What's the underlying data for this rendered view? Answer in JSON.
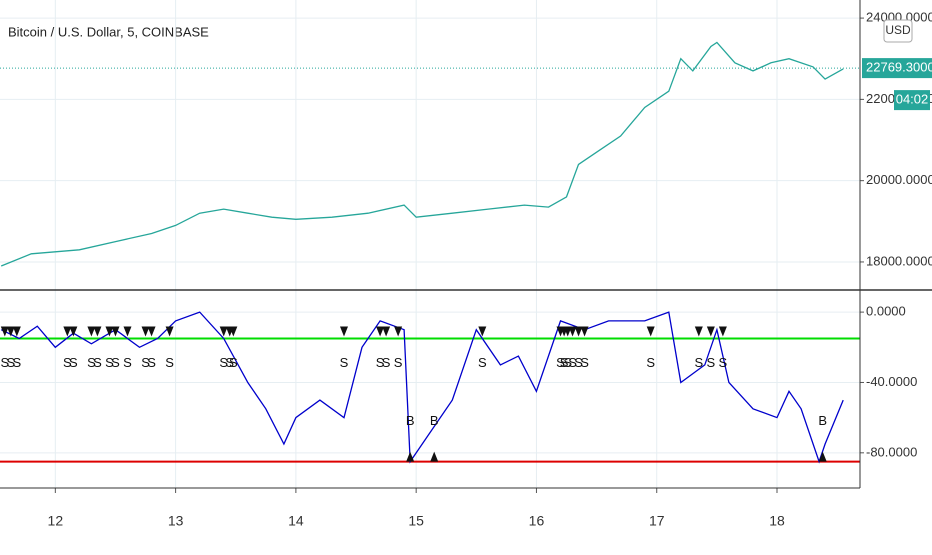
{
  "chart_data": [
    {
      "type": "line",
      "title": "Bitcoin / U.S. Dollar, 5, COINBASE",
      "x": [
        11.55,
        11.8,
        12.0,
        12.2,
        12.5,
        12.8,
        13.0,
        13.2,
        13.4,
        13.6,
        13.8,
        14.0,
        14.3,
        14.6,
        14.9,
        15.0,
        15.3,
        15.6,
        15.9,
        16.1,
        16.25,
        16.35,
        16.5,
        16.7,
        16.9,
        17.1,
        17.2,
        17.3,
        17.45,
        17.5,
        17.65,
        17.8,
        17.95,
        18.1,
        18.3,
        18.4,
        18.55
      ],
      "values": [
        17900,
        18200,
        18250,
        18300,
        18500,
        18700,
        18900,
        19200,
        19300,
        19200,
        19100,
        19050,
        19100,
        19200,
        19400,
        19100,
        19200,
        19300,
        19400,
        19350,
        19600,
        20400,
        20700,
        21100,
        21800,
        22200,
        23000,
        22700,
        23300,
        23400,
        22900,
        22700,
        22900,
        23000,
        22800,
        22500,
        22750
      ],
      "color": "#26a69a",
      "xlim": [
        11.54,
        18.69
      ],
      "ylim": [
        17310,
        24445
      ],
      "yticks": [
        {
          "value": 18000,
          "label": "18000.0000"
        },
        {
          "value": 20000,
          "label": "20000.0000"
        },
        {
          "value": 22000,
          "label": "22000.0000"
        },
        {
          "value": 24000,
          "label": "24000.0000"
        }
      ],
      "current_price": {
        "value": 22769.3,
        "label": "22769.3000"
      },
      "countdown": "04:02",
      "currency": "USD"
    },
    {
      "type": "line",
      "x": [
        11.55,
        11.7,
        11.85,
        12.0,
        12.15,
        12.3,
        12.5,
        12.7,
        12.85,
        13.0,
        13.2,
        13.4,
        13.6,
        13.75,
        13.9,
        14.0,
        14.2,
        14.4,
        14.55,
        14.7,
        14.9,
        14.95,
        15.1,
        15.3,
        15.5,
        15.7,
        15.85,
        16.0,
        16.2,
        16.4,
        16.6,
        16.9,
        17.1,
        17.2,
        17.4,
        17.5,
        17.6,
        17.8,
        18.0,
        18.1,
        18.2,
        18.35,
        18.4,
        18.55
      ],
      "values": [
        -10,
        -15,
        -8,
        -20,
        -12,
        -18,
        -10,
        -20,
        -15,
        -5,
        0,
        -15,
        -40,
        -55,
        -75,
        -60,
        -50,
        -60,
        -20,
        -5,
        -10,
        -85,
        -70,
        -50,
        -10,
        -30,
        -25,
        -45,
        -5,
        -10,
        -5,
        -5,
        0,
        -40,
        -30,
        -10,
        -40,
        -55,
        -60,
        -45,
        -55,
        -85,
        -75,
        -50
      ],
      "color": "#0000cc",
      "xlim": [
        11.54,
        18.69
      ],
      "ylim": [
        -100,
        12
      ],
      "yticks": [
        {
          "value": -80,
          "label": "-80.0000"
        },
        {
          "value": -40,
          "label": "-40.0000"
        },
        {
          "value": 0,
          "label": "0.0000"
        }
      ],
      "xticks": [
        12,
        13,
        14,
        15,
        16,
        17,
        18
      ],
      "levels": [
        {
          "value": -15,
          "color": "#00dd00"
        },
        {
          "value": -85,
          "color": "#dd0000"
        }
      ],
      "sell_signals": {
        "label": "S",
        "x": [
          11.58,
          11.63,
          11.68,
          12.1,
          12.15,
          12.3,
          12.35,
          12.45,
          12.5,
          12.6,
          12.75,
          12.8,
          12.95,
          13.4,
          13.45,
          13.48,
          14.4,
          14.7,
          14.75,
          14.85,
          15.55,
          16.2,
          16.23,
          16.26,
          16.3,
          16.35,
          16.4,
          16.95,
          17.35,
          17.45,
          17.55
        ]
      },
      "buy_signals": {
        "label": "B",
        "x": [
          14.95,
          15.15,
          18.38
        ]
      }
    }
  ]
}
